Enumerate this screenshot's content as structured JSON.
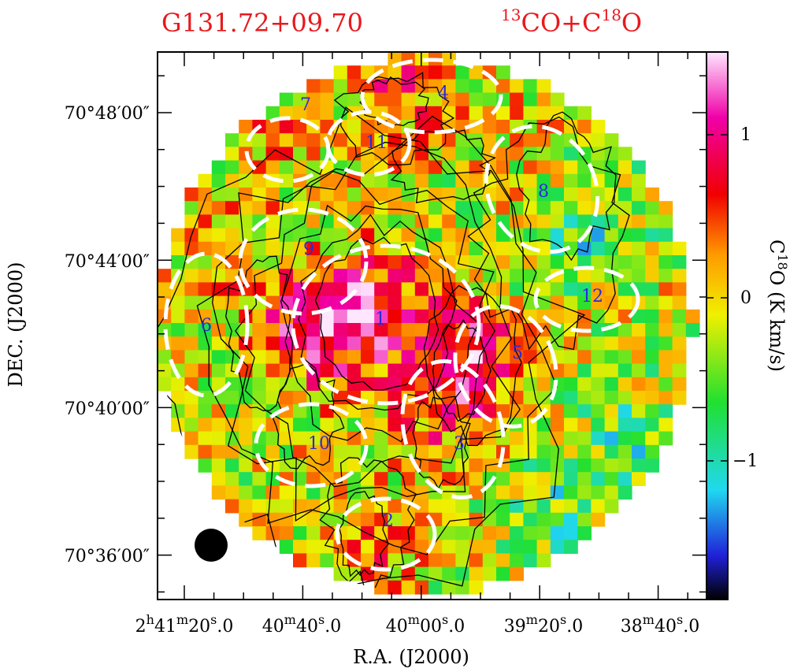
{
  "chart_data": {
    "type": "heatmap",
    "title_left": "G131.72+09.70",
    "title_right": {
      "prefix_sup": "13",
      "prefix": "CO+C",
      "suffix_sup": "18",
      "suffix": "O"
    },
    "xlabel": "R.A. (J2000)",
    "ylabel": "DEC. (J2000)",
    "colorbar_label": {
      "prefix": "C",
      "sup": "18",
      "suffix": "O (K km/s)"
    },
    "colorbar_range": [
      -1.75,
      1.6
    ],
    "colorbar_ticks": [
      "1",
      "0",
      "−1"
    ],
    "x_ticks": [
      {
        "h": "2",
        "m": "41",
        "s": "20",
        "frac": "0"
      },
      {
        "m": "40",
        "s": "40",
        "frac": "0"
      },
      {
        "m": "40",
        "s": "00",
        "frac": "0"
      },
      {
        "m": "39",
        "s": "20",
        "frac": "0"
      },
      {
        "m": "38",
        "s": "40",
        "frac": "0"
      }
    ],
    "y_ticks": [
      "70°48′00″",
      "70°44′00″",
      "70°40′00″",
      "70°36′00″"
    ],
    "cores": [
      "1",
      "2",
      "3",
      "4",
      "5",
      "6",
      "7",
      "8",
      "9",
      "10",
      "11",
      "12"
    ],
    "colors": {
      "title": "#e8191d",
      "core_label": "#2a2ad9",
      "ellipse": "#ffffff",
      "contour": "#000000"
    }
  }
}
